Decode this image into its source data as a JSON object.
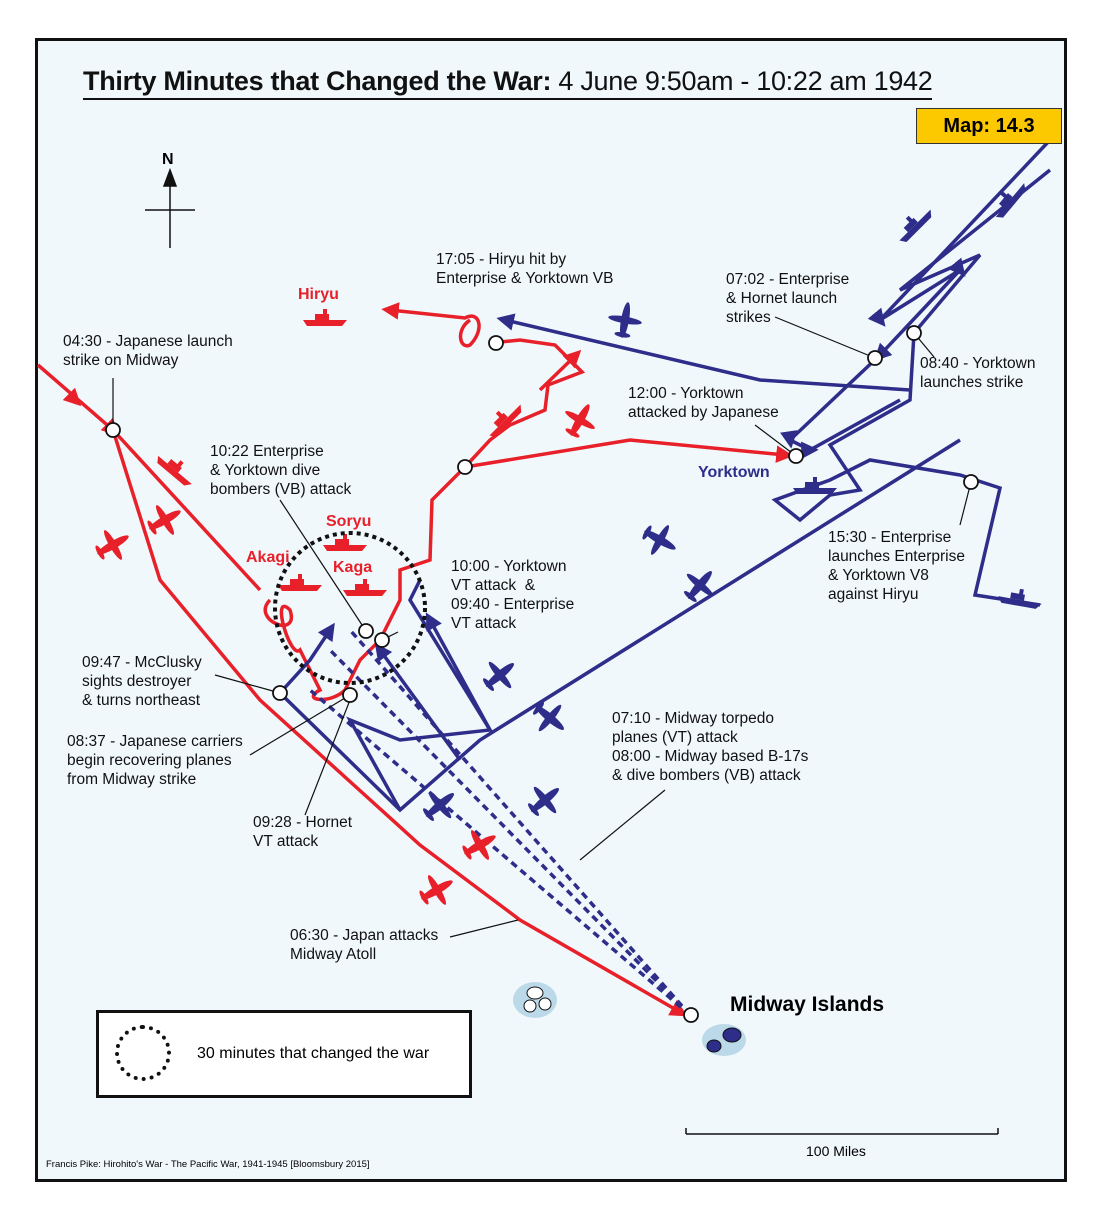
{
  "title": {
    "bold": "Thirty Minutes that Changed the War:",
    "regular": " 4 June 9:50am - 10:22 am 1942"
  },
  "map_number": "Map: 14.3",
  "compass": {
    "label": "N"
  },
  "colors": {
    "japanese": "#e8202a",
    "american": "#2e2e8a",
    "sea": "#f0f8fc",
    "badge": "#fcc900"
  },
  "ships": {
    "hiryu": "Hiryu",
    "soryu": "Soryu",
    "akagi": "Akagi",
    "kaga": "Kaga",
    "yorktown": "Yorktown"
  },
  "annotations": [
    "04:30 - Japanese launch\nstrike on Midway",
    "10:22 Enterprise\n& Yorktown dive\nbombers (VB) attack",
    "17:05 - Hiryu hit by\nEnterprise & Yorktown VB",
    "07:02 - Enterprise\n& Hornet launch\nstrikes",
    "08:40 - Yorktown\nlaunches strike",
    "12:00 - Yorktown\nattacked by Japanese",
    "15:30 - Enterprise\nlaunches Enterprise\n& Yorktown V8\nagainst Hiryu",
    "10:00 - Yorktown\nVT attack  &\n09:40 - Enterprise\nVT attack",
    "09:47 - McClusky\nsights destroyer\n& turns northeast",
    "08:37 - Japanese carriers\nbegin recovering planes\nfrom Midway strike",
    "09:28 - Hornet\nVT attack",
    "07:10 - Midway torpedo\nplanes (VT) attack\n08:00 - Midway based B-17s\n& dive bombers (VB) attack",
    "06:30 - Japan attacks\nMidway Atoll"
  ],
  "place": "Midway Islands",
  "legend": {
    "label": "30 minutes that changed the war"
  },
  "scale": {
    "label": "100 Miles"
  },
  "credit": "Francis Pike:  Hirohito's War - The Pacific War, 1941-1945   [Bloomsbury 2015]"
}
